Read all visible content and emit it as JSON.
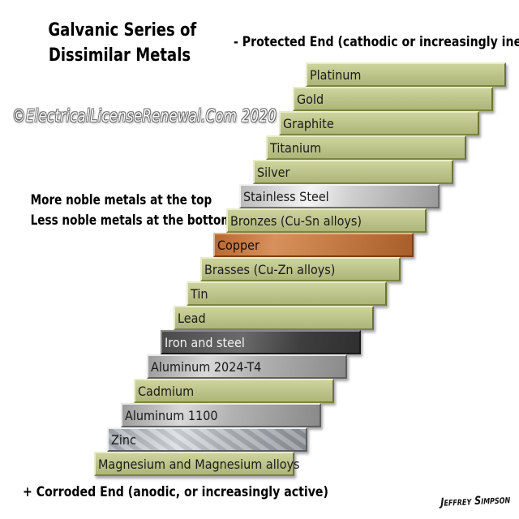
{
  "title_lines": [
    "Galvanic Series of",
    "Dissimilar Metals"
  ],
  "protected_end": "- Protected End (cathodic or increasingly inert)",
  "watermark": "©ElectricalLicenseRenewal.Com 2020",
  "noble_note": [
    "More noble metals at the top",
    "Less noble metals at the bottom"
  ],
  "corroded_end": "+ Corroded End (anodic, or increasingly active)",
  "signature": "Jeffrey Simpson",
  "metals": [
    {
      "label": "Platinum",
      "material": "olive"
    },
    {
      "label": "Gold",
      "material": "olive"
    },
    {
      "label": "Graphite",
      "material": "olive"
    },
    {
      "label": "Titanium",
      "material": "olive"
    },
    {
      "label": "Silver",
      "material": "olive"
    },
    {
      "label": "Stainless Steel",
      "material": "steel"
    },
    {
      "label": "Bronzes (Cu-Sn alloys)",
      "material": "olive"
    },
    {
      "label": "Copper",
      "material": "copper"
    },
    {
      "label": "Brasses (Cu-Zn alloys)",
      "material": "olive"
    },
    {
      "label": "Tin",
      "material": "olive"
    },
    {
      "label": "Lead",
      "material": "olive"
    },
    {
      "label": "Iron and steel",
      "material": "iron"
    },
    {
      "label": "Aluminum 2024-T4",
      "material": "alum"
    },
    {
      "label": "Cadmium",
      "material": "olive"
    },
    {
      "label": "Aluminum 1100",
      "material": "alum"
    },
    {
      "label": "Zinc",
      "material": "galv"
    },
    {
      "label": "Magnesium and Magnesium alloys",
      "material": "olive"
    }
  ]
}
